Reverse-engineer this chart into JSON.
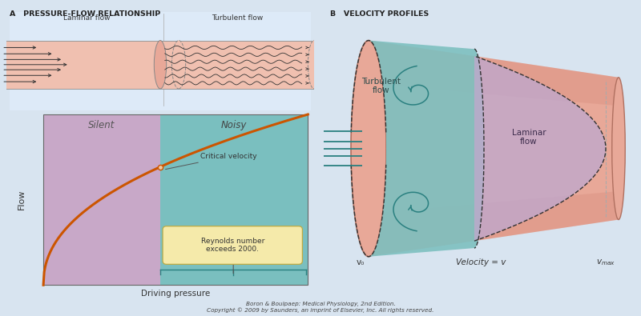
{
  "panel_A_title": "A   PRESSURE-FLOW RELATIONSHIP",
  "panel_B_title": "B   VELOCITY PROFILES",
  "laminar_label": "Laminar flow",
  "turbulent_label": "Turbulent flow",
  "silent_label": "Silent",
  "noisy_label": "Noisy",
  "flow_label": "Flow",
  "driving_pressure_label": "Driving pressure",
  "critical_velocity_label": "Critical velocity",
  "reynolds_label": "Reynolds number\nexceeds 2000.",
  "turbulent_flow_label": "Turbulent\nflow",
  "laminar_flow_label": "Laminar\nflow",
  "v0_label": "v₀",
  "velocity_label": "Velocity = v",
  "vmax_label": "vₘₐₓ",
  "citation": "Boron & Boulpaep: Medical Physiology, 2nd Edition.\nCopyright © 2009 by Saunders, an imprint of Elsevier, Inc. All rights reserved.",
  "bg_color": "#d8e4f0",
  "top_panel_bg": "#ddeaf8",
  "pink_tube_color": "#e8a898",
  "tube_inner_color": "#f0c0b0",
  "teal_color": "#7dc0c0",
  "purple_color": "#c0a8cc",
  "silent_bg": "#c8a8c8",
  "noisy_bg": "#7abfbf",
  "curve_color": "#cc5500",
  "reynolds_box_color": "#f5eaaa",
  "arrow_color": "#555555",
  "teal_arrow_color": "#2a8080"
}
